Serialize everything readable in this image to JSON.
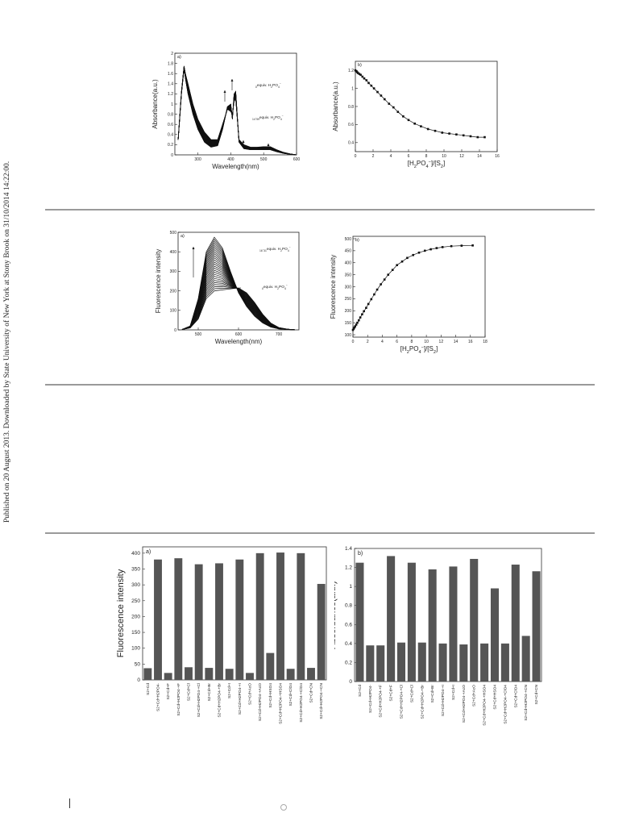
{
  "sidebar": {
    "text": "Published on 20 August 2013. Downloaded by State University of New York at Stony Brook on 31/10/2014 14:22:00."
  },
  "chart_data": [
    {
      "id": "abs-spectra",
      "type": "line",
      "panel": "a)",
      "xlabel": "Wavelength(nm)",
      "ylabel": "Absorbance(a.u.)",
      "xlim": [
        230,
        600
      ],
      "ylim": [
        0,
        2.0
      ],
      "xticks": [
        300,
        400,
        500,
        600
      ],
      "yticks": [
        0.0,
        0.2,
        0.4,
        0.6,
        0.8,
        1.0,
        1.2,
        1.4,
        1.6,
        1.8,
        2.0
      ],
      "annotations": [
        "0equiv. H2PO4-",
        "14.59equiv. H2PO4-"
      ],
      "series": [
        {
          "x": [
            240,
            250,
            258,
            262,
            270,
            285,
            300,
            320,
            340,
            360,
            375,
            390,
            400,
            405,
            410,
            415,
            425,
            440,
            460,
            480,
            500,
            520,
            540,
            560,
            580,
            600
          ],
          "values": [
            0.3,
            1.2,
            1.7,
            1.5,
            1.2,
            0.8,
            0.5,
            0.25,
            0.15,
            0.18,
            0.5,
            0.95,
            1.0,
            0.7,
            1.2,
            1.25,
            0.25,
            0.12,
            0.1,
            0.1,
            0.1,
            0.1,
            0.06,
            0.03,
            0.01,
            0.0
          ]
        },
        {
          "x": [
            240,
            250,
            258,
            262,
            270,
            285,
            300,
            320,
            340,
            360,
            375,
            390,
            400,
            405,
            410,
            415,
            425,
            440,
            460,
            480,
            500,
            520,
            540,
            560,
            580,
            600
          ],
          "values": [
            0.3,
            1.25,
            1.75,
            1.6,
            1.4,
            1.0,
            0.7,
            0.45,
            0.3,
            0.3,
            0.6,
            0.9,
            0.85,
            0.8,
            1.05,
            1.1,
            0.3,
            0.2,
            0.15,
            0.15,
            0.16,
            0.16,
            0.1,
            0.05,
            0.02,
            0.0
          ]
        }
      ]
    },
    {
      "id": "abs-titration",
      "type": "scatter",
      "panel": "b)",
      "xlabel": "[H2PO4-]/[S2]",
      "ylabel": "Absorbance(a.u.)",
      "xlim": [
        0,
        16
      ],
      "ylim": [
        0.3,
        1.3
      ],
      "xticks": [
        0,
        2,
        4,
        6,
        8,
        10,
        12,
        14,
        16
      ],
      "yticks": [
        0.4,
        0.6,
        0.8,
        1.0,
        1.2
      ],
      "x": [
        0,
        0.1,
        0.2,
        0.3,
        0.45,
        0.6,
        0.8,
        1.0,
        1.25,
        1.5,
        1.8,
        2.1,
        2.5,
        2.9,
        3.3,
        3.8,
        4.3,
        4.8,
        5.4,
        6.0,
        6.7,
        7.4,
        8.2,
        9.0,
        9.8,
        10.6,
        11.4,
        12.2,
        13.0,
        13.8,
        14.59
      ],
      "values": [
        1.2,
        1.19,
        1.18,
        1.17,
        1.16,
        1.15,
        1.13,
        1.11,
        1.09,
        1.06,
        1.03,
        1.0,
        0.96,
        0.92,
        0.88,
        0.83,
        0.79,
        0.74,
        0.69,
        0.65,
        0.61,
        0.58,
        0.55,
        0.53,
        0.51,
        0.5,
        0.49,
        0.48,
        0.47,
        0.46,
        0.46
      ]
    },
    {
      "id": "fl-spectra",
      "type": "line",
      "panel": "a)",
      "xlabel": "Wavelength(nm)",
      "ylabel": "Fluorescence intensity",
      "xlim": [
        450,
        750
      ],
      "ylim": [
        0,
        500
      ],
      "xticks": [
        500,
        600,
        700
      ],
      "yticks": [
        0,
        100,
        200,
        300,
        400,
        500
      ],
      "annotations": [
        "16.31equiv. H2PO4-",
        "0equiv. H2PO4-"
      ],
      "series": [
        {
          "x": [
            460,
            480,
            500,
            520,
            540,
            560,
            580,
            600,
            620,
            640,
            660,
            680,
            700,
            720,
            740
          ],
          "values": [
            2,
            10,
            55,
            160,
            200,
            205,
            210,
            215,
            190,
            140,
            80,
            35,
            12,
            4,
            1
          ]
        },
        {
          "x": [
            460,
            480,
            500,
            520,
            540,
            560,
            580,
            600,
            620,
            640,
            660,
            680,
            700,
            720,
            740
          ],
          "values": [
            2,
            20,
            160,
            400,
            475,
            420,
            300,
            190,
            120,
            70,
            35,
            14,
            5,
            2,
            0
          ]
        }
      ]
    },
    {
      "id": "fl-titration",
      "type": "scatter",
      "panel": "b)",
      "xlabel": "[H2PO4-]/[S2]",
      "ylabel": "Fluorescence intensity",
      "xlim": [
        0,
        18
      ],
      "ylim": [
        90,
        510
      ],
      "xticks": [
        0,
        2,
        4,
        6,
        8,
        10,
        12,
        14,
        16,
        18
      ],
      "yticks": [
        100,
        150,
        200,
        250,
        300,
        350,
        400,
        450,
        500
      ],
      "x": [
        0,
        0.1,
        0.2,
        0.3,
        0.45,
        0.6,
        0.8,
        1.0,
        1.25,
        1.5,
        1.8,
        2.1,
        2.5,
        2.9,
        3.3,
        3.8,
        4.3,
        4.8,
        5.4,
        6.0,
        6.7,
        7.4,
        8.2,
        9.0,
        9.8,
        10.6,
        11.4,
        12.2,
        13.4,
        14.8,
        16.31
      ],
      "values": [
        120,
        125,
        130,
        135,
        142,
        150,
        160,
        172,
        185,
        198,
        212,
        228,
        248,
        268,
        288,
        310,
        330,
        350,
        370,
        390,
        405,
        420,
        432,
        442,
        450,
        456,
        461,
        465,
        469,
        471,
        472
      ]
    },
    {
      "id": "fl-bars",
      "type": "bar",
      "panel": "a)",
      "ylabel": "Fluorescence intensity",
      "ylim": [
        0,
        420
      ],
      "yticks": [
        0,
        50,
        100,
        150,
        200,
        250,
        300,
        350,
        400
      ],
      "categories": [
        "S2+Cd",
        "S2+Cd+H2PO4-",
        "S2+Cd+F",
        "S2+Cd+H2PO4-+F",
        "S2+Cd+Cl",
        "S2+Cd+H2PO4-+Cl",
        "S2+Cd+Br",
        "S2+Cd+H2PO4-+Br",
        "S2+Cd+I",
        "S2+Cd+H2PO4-+I",
        "S2+Cd+AcO",
        "S2+Cd+H2PO4-+AcO",
        "S2+Cd+HSO4",
        "S2+Cd+H2PO4-+HSO4",
        "S2+Cd+ClO4",
        "S2+Cd+H2PO4-+ClO4",
        "S2+Cd+CN",
        "S2+Cd+H2PO4-+CN"
      ],
      "values": [
        37,
        380,
        22,
        384,
        40,
        365,
        38,
        368,
        35,
        380,
        22,
        400,
        85,
        402,
        35,
        400,
        38,
        303
      ]
    },
    {
      "id": "abs-bars",
      "type": "bar",
      "panel": "b)",
      "ylabel": "Absorbance(a.u.)",
      "ylim": [
        0,
        1.4
      ],
      "yticks": [
        0.0,
        0.2,
        0.4,
        0.6,
        0.8,
        1.0,
        1.2,
        1.4
      ],
      "categories": [
        "S2+Cd",
        "S2+Cd+H2PO4-",
        "S2+Cd+H2PO4-+F",
        "S2+Cd+F",
        "S2+Cd+H2PO4-+Cl",
        "S2+Cd+Cl",
        "S2+Cd+H2PO4-+Br",
        "S2+Cd+Br",
        "S2+Cd+H2PO4-+I",
        "S2+Cd+I",
        "S2+Cd+H2PO4-+AcO",
        "S2+Cd+AcO",
        "S2+Cd+H2PO4-+HSO4",
        "S2+Cd+HSO4",
        "S2+Cd+H2PO4-+ClO4",
        "S2+Cd+ClO4",
        "S2+Cd+H2PO4-+CN",
        "S2+Cd+CN"
      ],
      "values": [
        1.25,
        0.38,
        0.38,
        1.32,
        0.41,
        1.25,
        0.41,
        1.18,
        0.4,
        1.21,
        0.39,
        1.29,
        0.4,
        0.98,
        0.4,
        1.23,
        0.48,
        1.16
      ]
    }
  ]
}
